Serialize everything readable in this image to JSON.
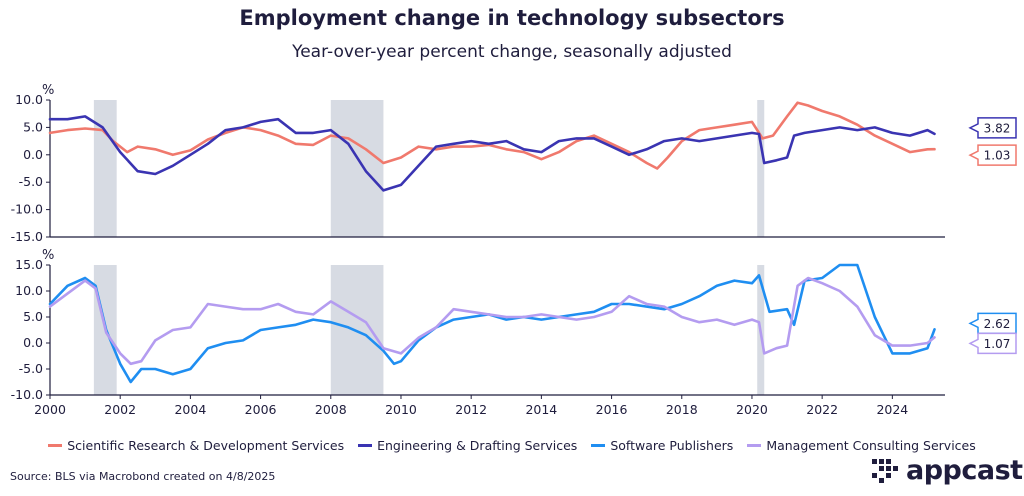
{
  "title": "Employment change in technology subsectors",
  "subtitle": "Year-over-year percent change, seasonally adjusted",
  "source": "Source: BLS via Macrobond created on 4/8/2025",
  "logo": {
    "text": "appcast",
    "icon": "appcast-dots-logo"
  },
  "colors": {
    "scientific": "#f0796d",
    "engineering": "#3a34b2",
    "software": "#1f8ef1",
    "management": "#b49cf0",
    "recession": "#d7dbe3",
    "text": "#1f1d3d"
  },
  "chart_data": [
    {
      "type": "line",
      "unit_label": "%",
      "ylim": [
        -15,
        10
      ],
      "yticks": [
        10.0,
        5.0,
        0.0,
        -5.0,
        -10.0,
        -15.0
      ],
      "ytick_labels": [
        "10.0",
        "5.0",
        "0.0",
        "-5.0",
        "-10.0",
        "-15.0"
      ],
      "xlim": [
        2000,
        2025.5
      ],
      "recessions": [
        [
          2001.25,
          2001.9
        ],
        [
          2008.0,
          2009.5
        ],
        [
          2020.15,
          2020.35
        ]
      ],
      "end_labels": [
        {
          "series": "Engineering & Drafting Services",
          "value": 3.82,
          "label": "3.82"
        },
        {
          "series": "Scientific Research & Development Services",
          "value": 1.03,
          "label": "1.03"
        }
      ],
      "series": [
        {
          "name": "Scientific Research & Development Services",
          "x": [
            2000.0,
            2000.5,
            2001.0,
            2001.5,
            2001.8,
            2002.2,
            2002.5,
            2003.0,
            2003.5,
            2004.0,
            2004.5,
            2005.0,
            2005.5,
            2006.0,
            2006.5,
            2007.0,
            2007.5,
            2008.0,
            2008.5,
            2009.0,
            2009.5,
            2010.0,
            2010.5,
            2011.0,
            2011.5,
            2012.0,
            2012.5,
            2013.0,
            2013.5,
            2014.0,
            2014.5,
            2015.0,
            2015.5,
            2016.0,
            2016.5,
            2017.0,
            2017.3,
            2017.6,
            2018.0,
            2018.5,
            2019.0,
            2019.5,
            2020.0,
            2020.3,
            2020.6,
            2021.0,
            2021.3,
            2021.6,
            2022.0,
            2022.5,
            2023.0,
            2023.5,
            2024.0,
            2024.5,
            2025.0,
            2025.2
          ],
          "values": [
            4.0,
            4.5,
            4.8,
            4.5,
            2.5,
            0.5,
            1.5,
            1.0,
            0.0,
            0.8,
            2.8,
            4.0,
            5.0,
            4.5,
            3.5,
            2.0,
            1.8,
            3.5,
            3.0,
            1.0,
            -1.5,
            -0.5,
            1.5,
            1.0,
            1.5,
            1.5,
            1.8,
            1.0,
            0.5,
            -0.8,
            0.5,
            2.5,
            3.5,
            2.0,
            0.5,
            -1.5,
            -2.5,
            -0.5,
            2.5,
            4.5,
            5.0,
            5.5,
            6.0,
            3.0,
            3.5,
            7.0,
            9.5,
            9.0,
            8.0,
            7.0,
            5.5,
            3.5,
            2.0,
            0.5,
            1.0,
            1.03
          ]
        },
        {
          "name": "Engineering & Drafting Services",
          "x": [
            2000.0,
            2000.5,
            2001.0,
            2001.5,
            2002.0,
            2002.5,
            2003.0,
            2003.5,
            2004.0,
            2004.5,
            2005.0,
            2005.5,
            2006.0,
            2006.5,
            2007.0,
            2007.5,
            2008.0,
            2008.5,
            2009.0,
            2009.5,
            2010.0,
            2010.5,
            2011.0,
            2011.5,
            2012.0,
            2012.5,
            2013.0,
            2013.5,
            2014.0,
            2014.5,
            2015.0,
            2015.5,
            2016.0,
            2016.5,
            2017.0,
            2017.5,
            2018.0,
            2018.5,
            2019.0,
            2019.5,
            2020.0,
            2020.2,
            2020.35,
            2020.7,
            2021.0,
            2021.2,
            2021.5,
            2022.0,
            2022.5,
            2023.0,
            2023.5,
            2024.0,
            2024.5,
            2025.0,
            2025.2
          ],
          "values": [
            6.5,
            6.5,
            7.0,
            5.0,
            0.5,
            -3.0,
            -3.5,
            -2.0,
            0.0,
            2.0,
            4.5,
            5.0,
            6.0,
            6.5,
            4.0,
            4.0,
            4.5,
            2.0,
            -3.0,
            -6.5,
            -5.5,
            -2.0,
            1.5,
            2.0,
            2.5,
            2.0,
            2.5,
            1.0,
            0.5,
            2.5,
            3.0,
            3.0,
            1.5,
            0.0,
            1.0,
            2.5,
            3.0,
            2.5,
            3.0,
            3.5,
            4.0,
            3.8,
            -1.5,
            -1.0,
            -0.5,
            3.5,
            4.0,
            4.5,
            5.0,
            4.5,
            5.0,
            4.0,
            3.5,
            4.5,
            3.82
          ]
        }
      ]
    },
    {
      "type": "line",
      "unit_label": "%",
      "ylim": [
        -10,
        15
      ],
      "yticks": [
        15.0,
        10.0,
        5.0,
        0.0,
        -5.0,
        -10.0
      ],
      "ytick_labels": [
        "15.0",
        "10.0",
        "5.0",
        "0.0",
        "-5.0",
        "-10.0"
      ],
      "xlim": [
        2000,
        2025.5
      ],
      "xticks": [
        2000,
        2002,
        2004,
        2006,
        2008,
        2010,
        2012,
        2014,
        2016,
        2018,
        2020,
        2022,
        2024
      ],
      "xtick_labels": [
        "2000",
        "2002",
        "2004",
        "2006",
        "2008",
        "2010",
        "2012",
        "2014",
        "2016",
        "2018",
        "2020",
        "2022",
        "2024"
      ],
      "recessions": [
        [
          2001.25,
          2001.9
        ],
        [
          2008.0,
          2009.5
        ],
        [
          2020.15,
          2020.35
        ]
      ],
      "end_labels": [
        {
          "series": "Software Publishers",
          "value": 2.62,
          "label": "2.62"
        },
        {
          "series": "Management Consulting Services",
          "value": 1.07,
          "label": "1.07"
        }
      ],
      "series": [
        {
          "name": "Software Publishers",
          "x": [
            2000.0,
            2000.5,
            2001.0,
            2001.3,
            2001.6,
            2002.0,
            2002.3,
            2002.6,
            2003.0,
            2003.5,
            2004.0,
            2004.5,
            2005.0,
            2005.5,
            2006.0,
            2006.5,
            2007.0,
            2007.5,
            2008.0,
            2008.5,
            2009.0,
            2009.5,
            2009.8,
            2010.0,
            2010.5,
            2011.0,
            2011.5,
            2012.0,
            2012.5,
            2013.0,
            2013.5,
            2014.0,
            2014.5,
            2015.0,
            2015.5,
            2016.0,
            2016.5,
            2017.0,
            2017.5,
            2018.0,
            2018.5,
            2019.0,
            2019.5,
            2020.0,
            2020.2,
            2020.5,
            2021.0,
            2021.2,
            2021.5,
            2022.0,
            2022.5,
            2023.0,
            2023.5,
            2024.0,
            2024.5,
            2025.0,
            2025.2
          ],
          "values": [
            7.5,
            11.0,
            12.5,
            11.0,
            2.5,
            -4.0,
            -7.5,
            -5.0,
            -5.0,
            -6.0,
            -5.0,
            -1.0,
            0.0,
            0.5,
            2.5,
            3.0,
            3.5,
            4.5,
            4.0,
            3.0,
            1.5,
            -1.5,
            -4.0,
            -3.5,
            0.5,
            3.0,
            4.5,
            5.0,
            5.5,
            4.5,
            5.0,
            4.5,
            5.0,
            5.5,
            6.0,
            7.5,
            7.5,
            7.0,
            6.5,
            7.5,
            9.0,
            11.0,
            12.0,
            11.5,
            13.0,
            6.0,
            6.5,
            3.5,
            12.0,
            12.5,
            15.0,
            15.0,
            5.0,
            -2.0,
            -2.0,
            -1.0,
            2.62
          ]
        },
        {
          "name": "Management Consulting Services",
          "x": [
            2000.0,
            2000.5,
            2001.0,
            2001.3,
            2001.6,
            2002.0,
            2002.3,
            2002.6,
            2003.0,
            2003.5,
            2004.0,
            2004.5,
            2005.0,
            2005.5,
            2006.0,
            2006.5,
            2007.0,
            2007.5,
            2008.0,
            2008.5,
            2009.0,
            2009.5,
            2010.0,
            2010.5,
            2011.0,
            2011.5,
            2012.0,
            2012.5,
            2013.0,
            2013.5,
            2014.0,
            2014.5,
            2015.0,
            2015.5,
            2016.0,
            2016.5,
            2017.0,
            2017.5,
            2018.0,
            2018.5,
            2019.0,
            2019.5,
            2020.0,
            2020.2,
            2020.35,
            2020.7,
            2021.0,
            2021.3,
            2021.6,
            2022.0,
            2022.5,
            2023.0,
            2023.5,
            2024.0,
            2024.5,
            2025.0,
            2025.2
          ],
          "values": [
            7.0,
            9.5,
            12.0,
            10.5,
            2.0,
            -2.0,
            -4.0,
            -3.5,
            0.5,
            2.5,
            3.0,
            7.5,
            7.0,
            6.5,
            6.5,
            7.5,
            6.0,
            5.5,
            8.0,
            6.0,
            4.0,
            -1.0,
            -2.0,
            1.0,
            3.0,
            6.5,
            6.0,
            5.5,
            5.0,
            5.0,
            5.5,
            5.0,
            4.5,
            5.0,
            6.0,
            9.0,
            7.5,
            7.0,
            5.0,
            4.0,
            4.5,
            3.5,
            4.5,
            4.0,
            -2.0,
            -1.0,
            -0.5,
            11.0,
            12.5,
            11.5,
            10.0,
            7.0,
            1.5,
            -0.5,
            -0.5,
            0.0,
            1.07
          ]
        }
      ]
    }
  ],
  "legend": [
    {
      "label": "Scientific Research & Development Services",
      "color_key": "scientific"
    },
    {
      "label": "Engineering & Drafting Services",
      "color_key": "engineering"
    },
    {
      "label": "Software Publishers",
      "color_key": "software"
    },
    {
      "label": "Management Consulting Services",
      "color_key": "management"
    }
  ]
}
